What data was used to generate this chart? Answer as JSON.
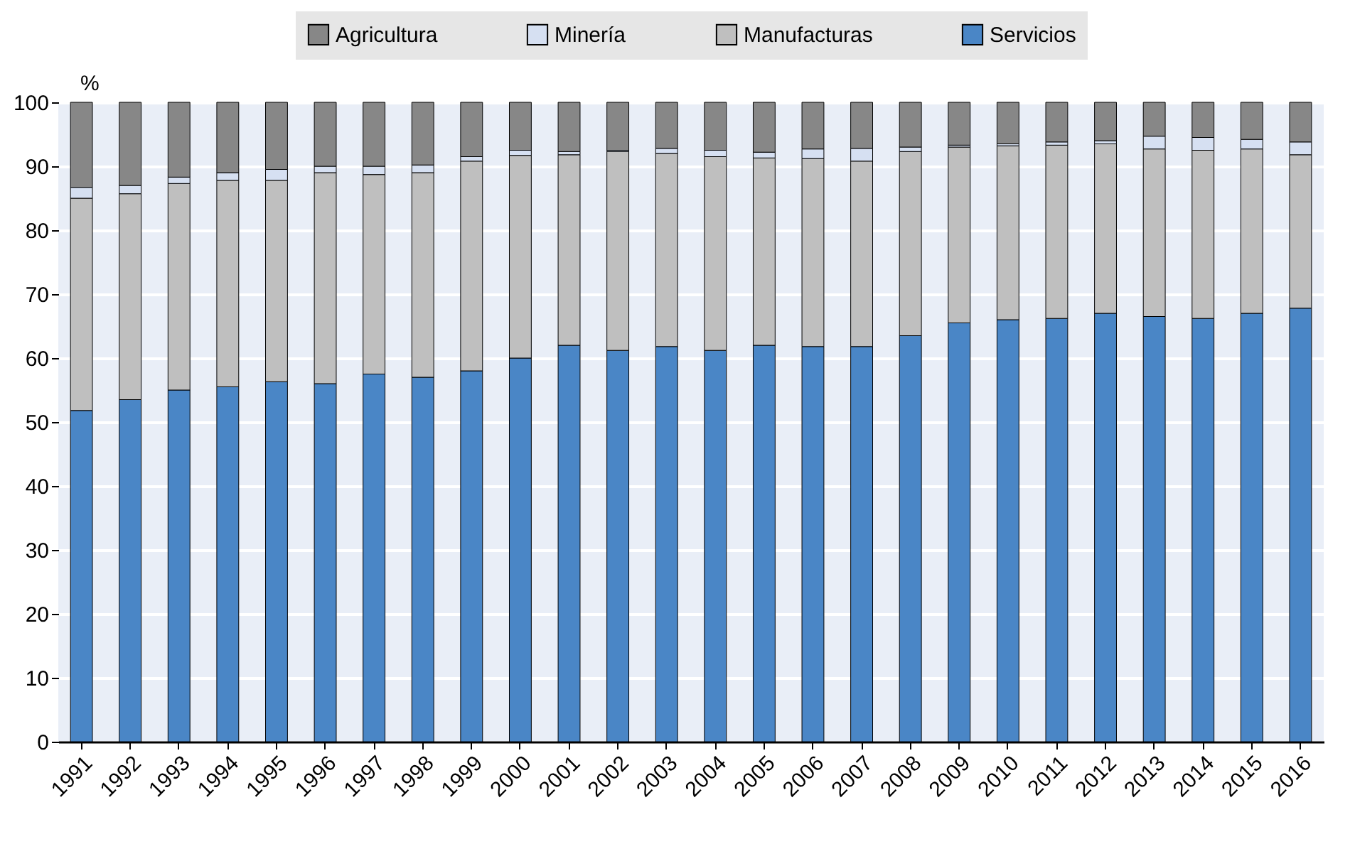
{
  "chart_data": {
    "type": "bar",
    "stacked": true,
    "ylabel": "%",
    "categories": [
      "1991",
      "1992",
      "1993",
      "1994",
      "1995",
      "1996",
      "1997",
      "1998",
      "1999",
      "2000",
      "2001",
      "2002",
      "2003",
      "2004",
      "2005",
      "2006",
      "2007",
      "2008",
      "2009",
      "2010",
      "2011",
      "2012",
      "2013",
      "2014",
      "2015",
      "2016"
    ],
    "series": [
      {
        "name": "Servicios",
        "color": "#4a86c6",
        "values": [
          51.8,
          53.5,
          55.0,
          55.5,
          56.3,
          56.0,
          57.5,
          57.0,
          58.0,
          60.0,
          62.0,
          61.2,
          61.8,
          61.2,
          62.0,
          61.8,
          61.8,
          63.5,
          65.5,
          66.0,
          66.2,
          67.0,
          66.5,
          66.2,
          67.0,
          67.8
        ]
      },
      {
        "name": "Manufacturas",
        "color": "#bfbfbf",
        "values": [
          33.2,
          32.2,
          32.3,
          32.3,
          31.5,
          33.0,
          31.2,
          32.0,
          32.8,
          31.7,
          29.8,
          31.1,
          30.2,
          30.3,
          29.3,
          29.4,
          29.0,
          28.8,
          27.5,
          27.2,
          27.1,
          26.5,
          26.2,
          26.3,
          25.7,
          24.0
        ]
      },
      {
        "name": "Minería",
        "color": "#d6e0f2",
        "values": [
          1.7,
          1.3,
          1.0,
          1.2,
          1.7,
          1.0,
          1.3,
          1.2,
          0.7,
          0.8,
          0.5,
          0.2,
          0.8,
          1.0,
          0.9,
          1.5,
          2.0,
          0.7,
          0.3,
          0.3,
          0.5,
          0.5,
          2.0,
          2.0,
          1.5,
          2.0
        ]
      },
      {
        "name": "Agricultura",
        "color": "#878787",
        "values": [
          13.3,
          13.0,
          11.7,
          11.0,
          10.5,
          10.0,
          10.0,
          9.8,
          8.5,
          7.5,
          7.7,
          7.5,
          7.2,
          7.5,
          7.8,
          7.3,
          7.2,
          7.0,
          6.7,
          6.5,
          6.2,
          6.0,
          5.3,
          5.5,
          5.8,
          6.2
        ]
      }
    ],
    "ylim": [
      0,
      100
    ],
    "yticks": [
      0,
      10,
      20,
      30,
      40,
      50,
      60,
      70,
      80,
      90,
      100
    ],
    "grid": "y",
    "legend": "top"
  }
}
